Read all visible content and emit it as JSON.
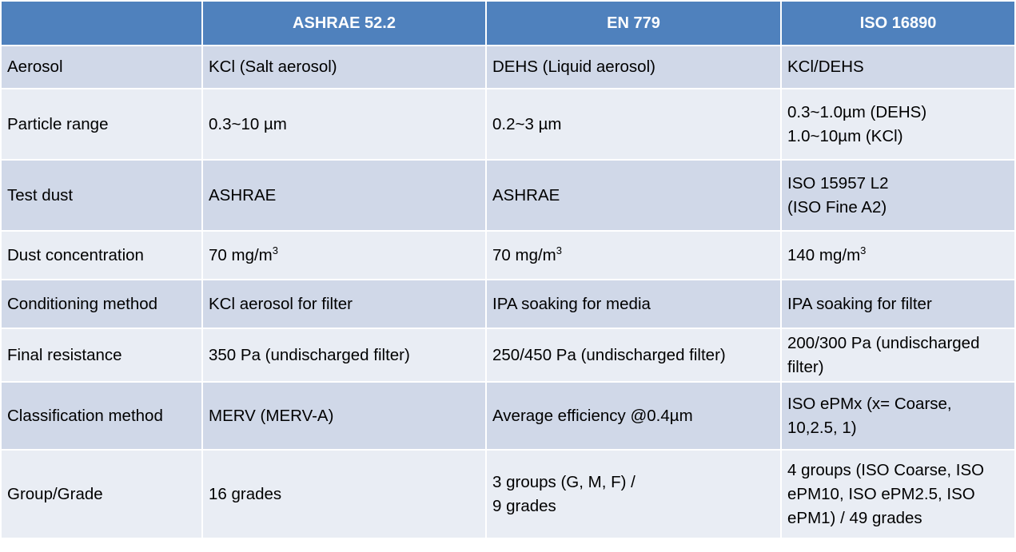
{
  "table": {
    "header": [
      "",
      "ASHRAE 52.2",
      "EN 779",
      "ISO 16890"
    ],
    "rows": [
      {
        "label": "Aerosol",
        "ashrae": [
          "KCl (Salt aerosol)"
        ],
        "en": [
          "DEHS (Liquid aerosol)"
        ],
        "iso": [
          "KCl/DEHS"
        ]
      },
      {
        "label": "Particle range",
        "ashrae": [
          "0.3~10 µm"
        ],
        "en": [
          "0.2~3 µm"
        ],
        "iso": [
          "0.3~1.0µm (DEHS)",
          "1.0~10µm (KCl)"
        ]
      },
      {
        "label": "Test dust",
        "ashrae": [
          "ASHRAE"
        ],
        "en": [
          "ASHRAE"
        ],
        "iso": [
          "ISO 15957 L2",
          "(ISO Fine A2)"
        ]
      },
      {
        "label": "Dust concentration",
        "ashrae": "70 mg/m",
        "en": "70 mg/m",
        "iso": "140 mg/m",
        "superscript": "3"
      },
      {
        "label": "Conditioning method",
        "ashrae": [
          "KCl aerosol for filter"
        ],
        "en": [
          "IPA soaking for media"
        ],
        "iso": [
          "IPA soaking for filter"
        ]
      },
      {
        "label": "Final resistance",
        "ashrae": [
          "350 Pa (undischarged filter)"
        ],
        "en": [
          "250/450 Pa (undischarged filter)"
        ],
        "iso": [
          "200/300 Pa (undischarged",
          "filter)"
        ]
      },
      {
        "label": "Classification method",
        "ashrae": [
          "MERV (MERV-A)"
        ],
        "en": [
          "Average efficiency @0.4µm"
        ],
        "iso": [
          "ISO ePMx (x= Coarse,",
          "10,2.5, 1)"
        ]
      },
      {
        "label": "Group/Grade",
        "ashrae": [
          "16 grades"
        ],
        "en": [
          "3 groups (G, M, F) /",
          "9 grades"
        ],
        "iso": [
          "4 groups (ISO Coarse, ISO",
          "ePM10, ISO ePM2.5, ISO",
          "ePM1) / 49 grades"
        ]
      }
    ]
  },
  "colors": {
    "header_bg": "#4f81bd",
    "row_odd_bg": "#d0d8e8",
    "row_even_bg": "#e9edf4",
    "header_text": "#ffffff"
  }
}
